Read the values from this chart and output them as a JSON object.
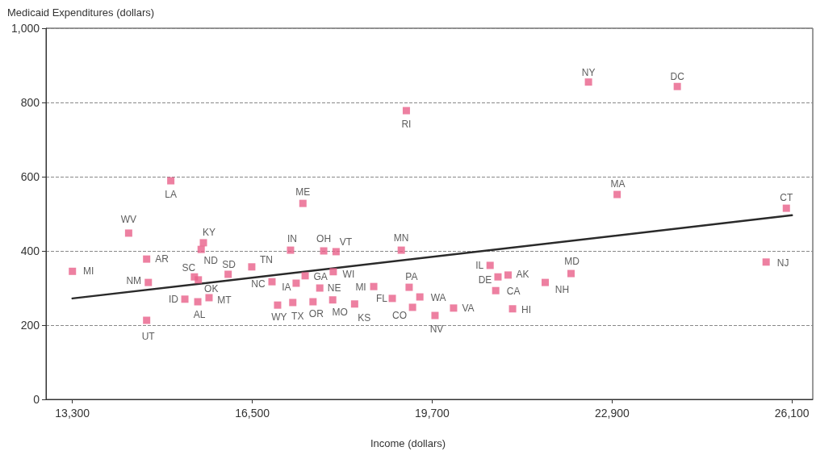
{
  "chart_data": {
    "type": "scatter",
    "xlabel": "Income (dollars)",
    "ylabel": "Medicaid Expenditures (dollars)",
    "xlim": [
      12830,
      26470
    ],
    "ylim": [
      0,
      1000
    ],
    "xticks": [
      {
        "value": 13300,
        "label": "13,300"
      },
      {
        "value": 16500,
        "label": "16,500"
      },
      {
        "value": 19700,
        "label": "19,700"
      },
      {
        "value": 22900,
        "label": "22,900"
      },
      {
        "value": 26100,
        "label": "26,100"
      }
    ],
    "yticks": [
      0,
      200,
      400,
      600,
      800,
      {
        "value": 1000,
        "label": "1,000"
      }
    ],
    "grid": "y",
    "marker": "square",
    "series": [
      {
        "type": "scatter",
        "color": "#e8608a",
        "x": [
          13300,
          14300,
          14620,
          14650,
          14620,
          15050,
          15300,
          15630,
          15590,
          15470,
          15540,
          15530,
          15730,
          16070,
          16490,
          16850,
          17180,
          16950,
          17220,
          17280,
          17440,
          17580,
          17770,
          17700,
          17990,
          17940,
          17930,
          18320,
          18660,
          18990,
          19150,
          19240,
          19290,
          19350,
          19480,
          19750,
          20080,
          20730,
          20870,
          21050,
          20830,
          21130,
          21710,
          22170,
          22480,
          22990,
          24060,
          25640,
          26000,
          17400
        ],
        "values": [
          345,
          448,
          378,
          315,
          213,
          589,
          270,
          422,
          404,
          330,
          322,
          263,
          274,
          337,
          357,
          317,
          402,
          254,
          261,
          313,
          333,
          263,
          400,
          300,
          398,
          344,
          268,
          257,
          304,
          272,
          402,
          778,
          302,
          248,
          276,
          226,
          246,
          361,
          330,
          335,
          293,
          244,
          315,
          339,
          855,
          552,
          843,
          370,
          515,
          528
        ]
      },
      {
        "type": "line",
        "color": "#2a2a2a",
        "marker": "none",
        "line_style": "solid",
        "x": [
          13300,
          26100
        ],
        "values": [
          272,
          496
        ]
      }
    ],
    "annotations": [
      {
        "text": "MI",
        "x": 13300,
        "y": 345
      },
      {
        "text": "WV",
        "x": 14300,
        "y": 448
      },
      {
        "text": "AR",
        "x": 14620,
        "y": 378
      },
      {
        "text": "NM",
        "x": 14650,
        "y": 315
      },
      {
        "text": "UT",
        "x": 14620,
        "y": 213
      },
      {
        "text": "LA",
        "x": 15050,
        "y": 589
      },
      {
        "text": "ID",
        "x": 15300,
        "y": 270
      },
      {
        "text": "KY",
        "x": 15630,
        "y": 422
      },
      {
        "text": "ND",
        "x": 15590,
        "y": 404
      },
      {
        "text": "SC",
        "x": 15470,
        "y": 330
      },
      {
        "text": "OK",
        "x": 15540,
        "y": 322
      },
      {
        "text": "AL",
        "x": 15530,
        "y": 263
      },
      {
        "text": "MT",
        "x": 15730,
        "y": 274
      },
      {
        "text": "SD",
        "x": 16070,
        "y": 337
      },
      {
        "text": "TN",
        "x": 16490,
        "y": 357
      },
      {
        "text": "NC",
        "x": 16850,
        "y": 317
      },
      {
        "text": "IN",
        "x": 17180,
        "y": 402
      },
      {
        "text": "WY",
        "x": 16950,
        "y": 254
      },
      {
        "text": "TX",
        "x": 17220,
        "y": 261
      },
      {
        "text": "IA",
        "x": 17280,
        "y": 313
      },
      {
        "text": "GA",
        "x": 17440,
        "y": 333
      },
      {
        "text": "OR",
        "x": 17580,
        "y": 263
      },
      {
        "text": "OH",
        "x": 17770,
        "y": 400
      },
      {
        "text": "NE",
        "x": 17700,
        "y": 300
      },
      {
        "text": "VT",
        "x": 17990,
        "y": 398
      },
      {
        "text": "WI",
        "x": 17940,
        "y": 344
      },
      {
        "text": "MO",
        "x": 17930,
        "y": 268
      },
      {
        "text": "KS",
        "x": 18320,
        "y": 257
      },
      {
        "text": "MI",
        "x": 18660,
        "y": 304
      },
      {
        "text": "FL",
        "x": 18990,
        "y": 272
      },
      {
        "text": "MN",
        "x": 19150,
        "y": 402
      },
      {
        "text": "RI",
        "x": 19240,
        "y": 778
      },
      {
        "text": "PA",
        "x": 19290,
        "y": 302
      },
      {
        "text": "CO",
        "x": 19350,
        "y": 248
      },
      {
        "text": "WA",
        "x": 19480,
        "y": 276
      },
      {
        "text": "NV",
        "x": 19750,
        "y": 226
      },
      {
        "text": "VA",
        "x": 20080,
        "y": 246
      },
      {
        "text": "IL",
        "x": 20730,
        "y": 361
      },
      {
        "text": "DE",
        "x": 20870,
        "y": 330
      },
      {
        "text": "AK",
        "x": 21050,
        "y": 335
      },
      {
        "text": "CA",
        "x": 20830,
        "y": 293
      },
      {
        "text": "HI",
        "x": 21130,
        "y": 244
      },
      {
        "text": "NH",
        "x": 21710,
        "y": 315
      },
      {
        "text": "MD",
        "x": 22170,
        "y": 339
      },
      {
        "text": "NY",
        "x": 22480,
        "y": 855
      },
      {
        "text": "MA",
        "x": 22990,
        "y": 552
      },
      {
        "text": "DC",
        "x": 24060,
        "y": 843
      },
      {
        "text": "NJ",
        "x": 25640,
        "y": 370
      },
      {
        "text": "CT",
        "x": 26000,
        "y": 515
      },
      {
        "text": "ME",
        "x": 17400,
        "y": 528
      }
    ]
  }
}
